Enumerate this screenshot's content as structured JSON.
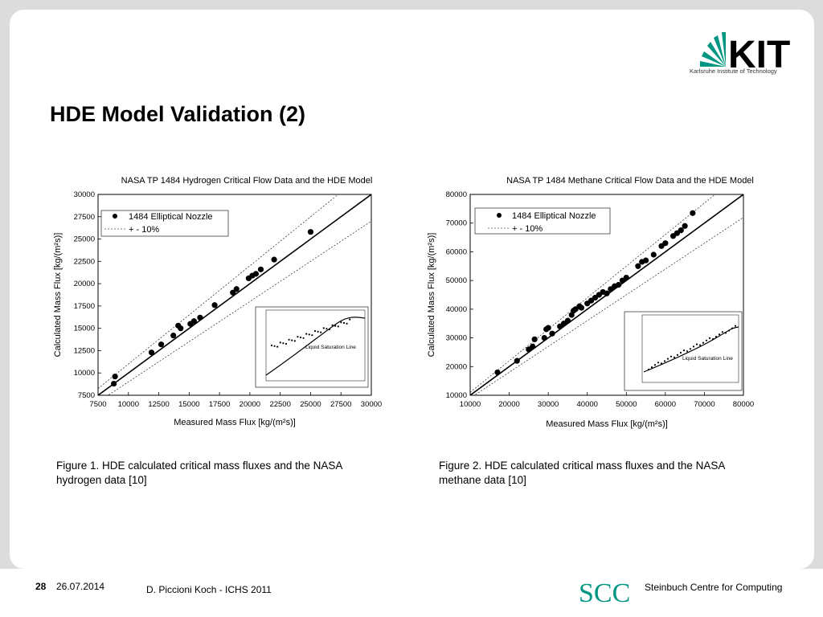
{
  "slide": {
    "title": "HDE Model Validation (2)",
    "logo_text": "KIT",
    "logo_subtitle": "Karlsruhe Institute of Technology",
    "brand_color": "#009682"
  },
  "charts": [
    {
      "title": "NASA TP 1484 Hydrogen Critical Flow Data and the HDE Model",
      "xlabel": "Measured Mass Flux [kg/(m²s)]",
      "ylabel": "Calculated Mass Flux [kg/(m²s)]",
      "xticks": [
        "7500",
        "10000",
        "12500",
        "15000",
        "17500",
        "20000",
        "22500",
        "25000",
        "27500",
        "30000"
      ],
      "yticks": [
        "30000",
        "27500",
        "25000",
        "22500",
        "20000",
        "17500",
        "15000",
        "12500",
        "10000",
        "7500"
      ],
      "legend": [
        "1484 Elliptical Nozzle",
        "+ - 10%"
      ],
      "inset_label": "Liquid Saturation Line"
    },
    {
      "title": "NASA TP 1484 Methane Critical Flow Data and the HDE Model",
      "xlabel": "Measured Mass Flux [kg/(m²s)]",
      "ylabel": "Calculated Mass Flux [kg/(m²s)]",
      "xticks": [
        "10000",
        "20000",
        "30000",
        "40000",
        "50000",
        "60000",
        "70000",
        "80000"
      ],
      "yticks": [
        "80000",
        "70000",
        "60000",
        "50000",
        "40000",
        "30000",
        "20000",
        "10000"
      ],
      "legend": [
        "1484 Elliptical Nozzle",
        "+ - 10%"
      ],
      "inset_label": "Liquid Saturation Line"
    }
  ],
  "chart_data": [
    {
      "type": "scatter",
      "title": "NASA TP 1484 Hydrogen Critical Flow Data and the HDE Model",
      "xlabel": "Measured Mass Flux [kg/(m²s)]",
      "ylabel": "Calculated Mass Flux [kg/(m²s)]",
      "xlim": [
        7500,
        30000
      ],
      "ylim": [
        7500,
        30000
      ],
      "legend_position": "top-left",
      "series": [
        {
          "name": "1484 Elliptical Nozzle",
          "x": [
            8800,
            8900,
            11900,
            12700,
            13700,
            14100,
            14300,
            15100,
            15400,
            15900,
            17100,
            18600,
            18900,
            19900,
            20200,
            20500,
            20900,
            22000,
            25000
          ],
          "y": [
            8800,
            9600,
            12300,
            13200,
            14200,
            15300,
            15000,
            15500,
            15800,
            16200,
            17600,
            19000,
            19400,
            20600,
            20900,
            21100,
            21600,
            22700,
            25800
          ]
        }
      ],
      "reference_lines": [
        "y = x",
        "y = 1.1x",
        "y = 0.9x"
      ]
    },
    {
      "type": "scatter",
      "title": "NASA TP 1484 Methane Critical Flow Data and the HDE Model",
      "xlabel": "Measured Mass Flux [kg/(m²s)]",
      "ylabel": "Calculated Mass Flux [kg/(m²s)]",
      "xlim": [
        10000,
        80000
      ],
      "ylim": [
        10000,
        80000
      ],
      "legend_position": "top-left",
      "series": [
        {
          "name": "1484 Elliptical Nozzle",
          "x": [
            17000,
            22000,
            25000,
            26000,
            26500,
            29000,
            29500,
            30000,
            31000,
            33000,
            34000,
            35000,
            36000,
            36500,
            37000,
            38000,
            38500,
            40000,
            41000,
            42000,
            43000,
            44000,
            45000,
            46000,
            47000,
            48000,
            49000,
            50000,
            53000,
            54000,
            55000,
            57000,
            59000,
            60000,
            62000,
            63000,
            64000,
            65000,
            67000
          ],
          "y": [
            18000,
            22000,
            26000,
            27000,
            29500,
            30000,
            33000,
            33500,
            31500,
            34000,
            35000,
            36000,
            38000,
            39500,
            40000,
            41000,
            40500,
            42000,
            43000,
            44000,
            45000,
            46000,
            45500,
            47000,
            48000,
            48500,
            50000,
            51000,
            55000,
            56500,
            57000,
            59000,
            62000,
            63000,
            65500,
            66500,
            67500,
            69000,
            73500
          ]
        }
      ],
      "reference_lines": [
        "y = x",
        "y = 1.1x",
        "y = 0.9x"
      ]
    }
  ],
  "captions": [
    "Figure 1. HDE calculated critical mass fluxes and the NASA hydrogen data [10]",
    "Figure 2. HDE calculated critical mass fluxes and the NASA methane data [10]"
  ],
  "footer": {
    "page_number": "28",
    "date": "26.07.2014",
    "author": "D. Piccioni Koch  -  ICHS 2011",
    "org_logo": "SCC",
    "org_name": "Steinbuch Centre for Computing"
  }
}
